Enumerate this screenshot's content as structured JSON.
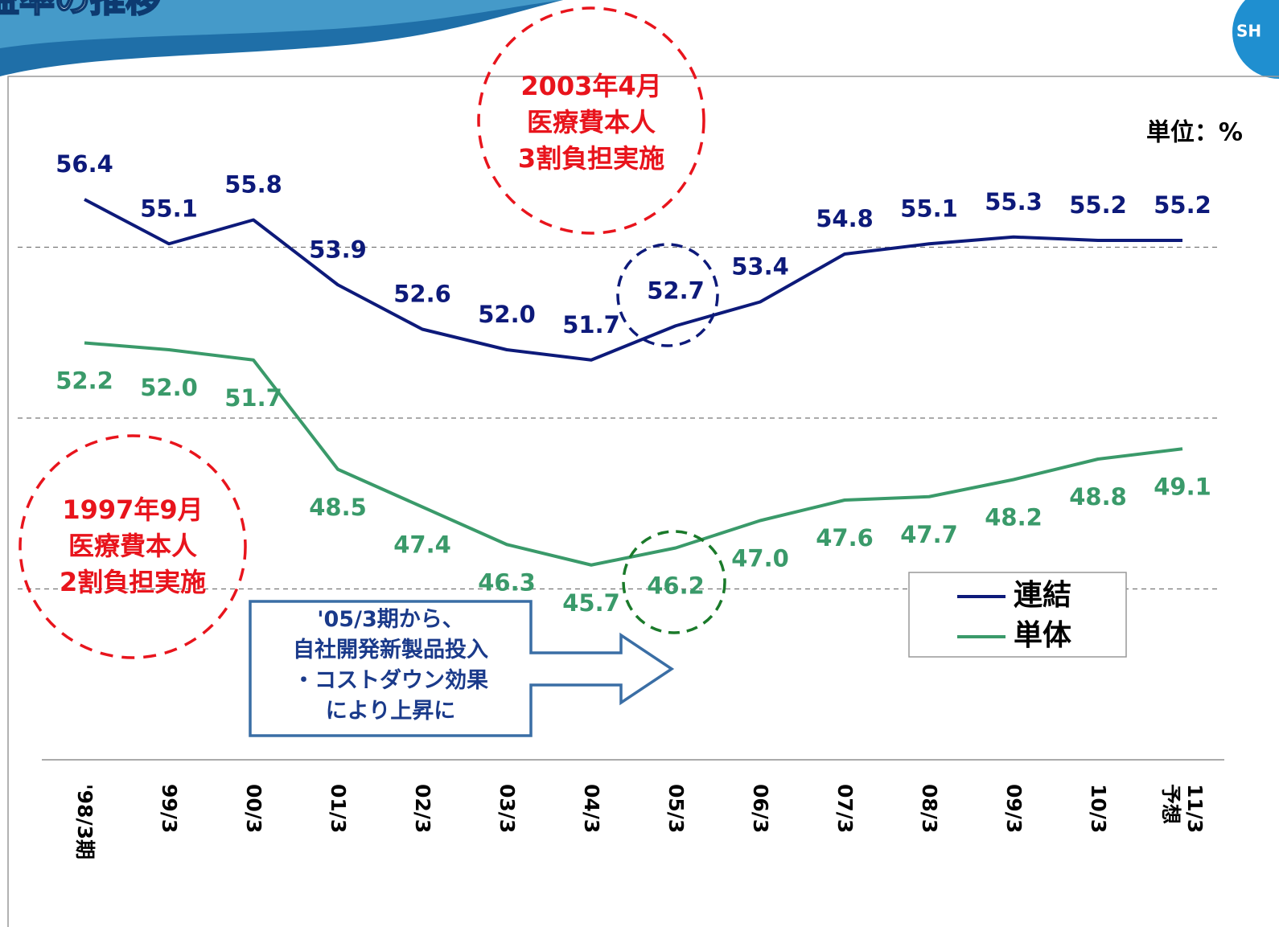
{
  "chart_data": {
    "type": "line",
    "title": "益率の推移",
    "logo": "SH",
    "unit_label": "単位：%",
    "categories": [
      "'98/3期",
      "99/3",
      "00/3",
      "01/3",
      "02/3",
      "03/3",
      "04/3",
      "05/3",
      "06/3",
      "07/3",
      "08/3",
      "09/3",
      "10/3",
      "11/3\n予想"
    ],
    "series": [
      {
        "name": "連結",
        "color": "#0d1a7a",
        "values": [
          56.4,
          55.1,
          55.8,
          53.9,
          52.6,
          52.0,
          51.7,
          52.7,
          53.4,
          54.8,
          55.1,
          55.3,
          55.2,
          55.2
        ],
        "value_labels": [
          "56.4",
          "55.1",
          "55.8",
          "53.9",
          "52.6",
          "52.0",
          "51.7",
          "52.7",
          "53.4",
          "54.8",
          "55.1",
          "55.3",
          "55.2",
          "55.2"
        ]
      },
      {
        "name": "単体",
        "color": "#3a9a6a",
        "values": [
          52.2,
          52.0,
          51.7,
          48.5,
          47.4,
          46.3,
          45.7,
          46.2,
          47.0,
          47.6,
          47.7,
          48.2,
          48.8,
          49.1
        ],
        "value_labels": [
          "52.2",
          "52.0",
          "51.7",
          "48.5",
          "47.4",
          "46.3",
          "45.7",
          "46.2",
          "47.0",
          "47.6",
          "47.7",
          "48.2",
          "48.8",
          "49.1"
        ]
      }
    ],
    "ylim": [
      40,
      60
    ],
    "yticks": [
      40,
      45,
      50,
      55
    ],
    "grid": true,
    "legend_position": "lower right",
    "annotations": [
      "2003年4月\n医療費本人\n3割負担実施",
      "1997年9月\n医療費本人\n2割負担実施",
      "'05/3期から、\n自社開発新製品投入\n・コストダウン効果\nにより上昇に"
    ]
  }
}
